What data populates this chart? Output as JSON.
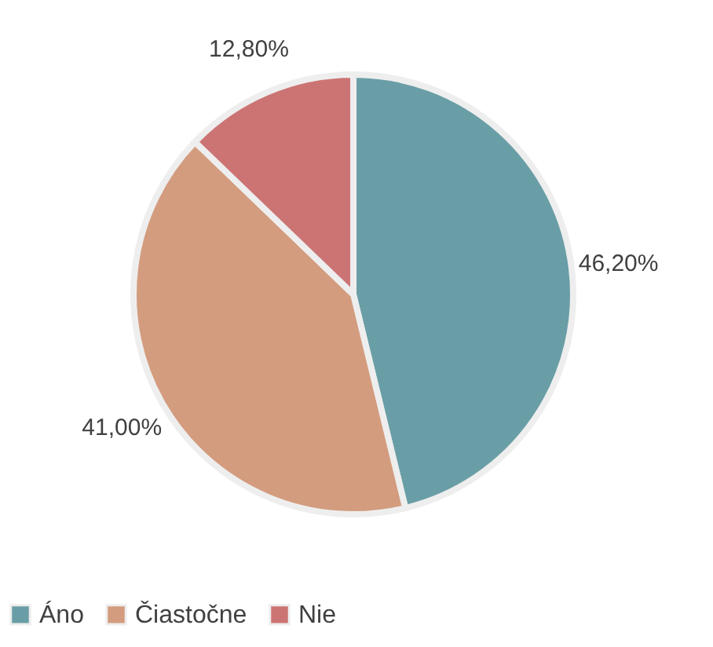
{
  "chart_data": {
    "type": "pie",
    "categories": [
      "Áno",
      "Čiastočne",
      "Nie"
    ],
    "values": [
      46.2,
      41.0,
      12.8
    ],
    "colors": [
      "#6a9ea6",
      "#d39c7e",
      "#cc7474"
    ],
    "value_labels": [
      "46,20%",
      "41,00%",
      "12,80%"
    ],
    "legend": "bottom"
  }
}
